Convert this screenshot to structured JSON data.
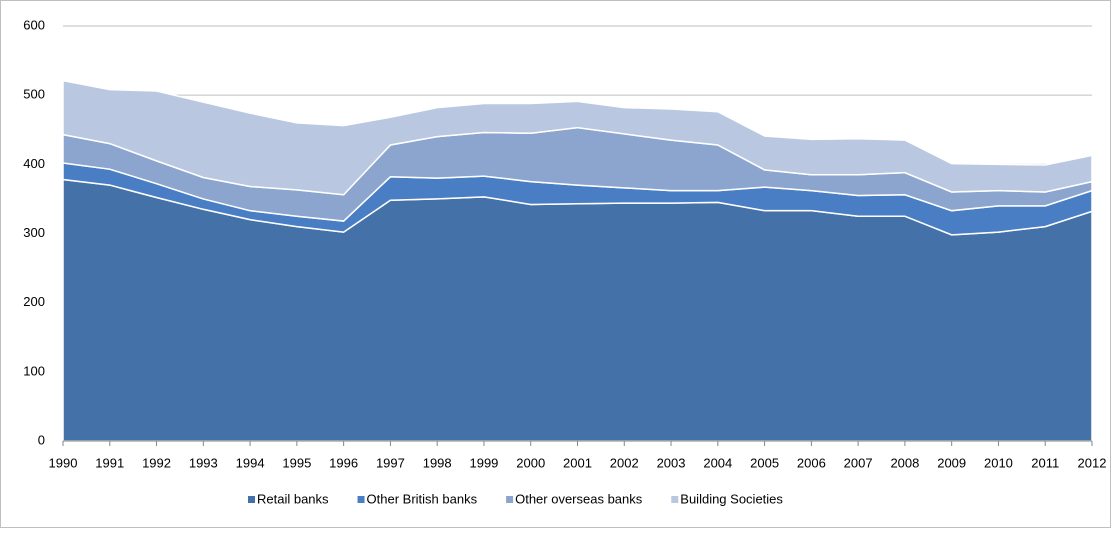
{
  "chart_data": {
    "type": "stacked-area",
    "categories": [
      "1990",
      "1991",
      "1992",
      "1993",
      "1994",
      "1995",
      "1996",
      "1997",
      "1998",
      "1999",
      "2000",
      "2001",
      "2002",
      "2003",
      "2004",
      "2005",
      "2006",
      "2007",
      "2008",
      "2009",
      "2010",
      "2011",
      "2012"
    ],
    "series": [
      {
        "name": "Retail banks",
        "color": "#4471a7",
        "values": [
          378,
          370,
          352,
          335,
          320,
          310,
          302,
          348,
          350,
          353,
          342,
          343,
          344,
          344,
          345,
          333,
          333,
          325,
          325,
          298,
          302,
          310,
          332
        ]
      },
      {
        "name": "Other British banks",
        "color": "#4a7ec4",
        "values": [
          24,
          23,
          20,
          15,
          13,
          15,
          16,
          34,
          30,
          30,
          33,
          27,
          22,
          18,
          17,
          34,
          29,
          30,
          31,
          35,
          38,
          30,
          30
        ]
      },
      {
        "name": "Other overseas banks",
        "color": "#8ba5cf",
        "values": [
          41,
          37,
          33,
          31,
          35,
          38,
          38,
          46,
          60,
          63,
          70,
          83,
          78,
          73,
          66,
          25,
          23,
          30,
          32,
          27,
          22,
          20,
          13
        ]
      },
      {
        "name": "Building Societies",
        "color": "#b9c7e1",
        "values": [
          78,
          78,
          101,
          109,
          106,
          97,
          100,
          40,
          42,
          42,
          43,
          38,
          38,
          45,
          48,
          49,
          51,
          52,
          47,
          41,
          38,
          39,
          38
        ]
      }
    ],
    "ylim": [
      0,
      600
    ],
    "yticks": [
      0,
      100,
      200,
      300,
      400,
      500,
      600
    ],
    "grid": true,
    "legend": "bottom"
  }
}
